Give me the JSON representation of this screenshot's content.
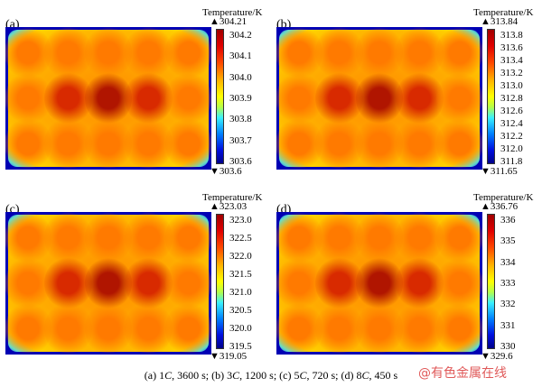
{
  "figure": {
    "panels": [
      {
        "id": "a",
        "label": "(a)",
        "colorbar": {
          "title": "Temperature/K",
          "max_label": "▲304.21",
          "min_label": "▼303.6",
          "ticks": [
            "304.2",
            "304.1",
            "304.0",
            "303.9",
            "303.8",
            "303.7",
            "303.6"
          ]
        }
      },
      {
        "id": "b",
        "label": "(b)",
        "colorbar": {
          "title": "Temperature/K",
          "max_label": "▲313.84",
          "min_label": "▼311.65",
          "ticks": [
            "313.8",
            "313.6",
            "313.4",
            "313.2",
            "313.0",
            "312.8",
            "312.6",
            "312.4",
            "312.2",
            "312.0",
            "311.8"
          ]
        }
      },
      {
        "id": "c",
        "label": "(c)",
        "colorbar": {
          "title": "Temperature/K",
          "max_label": "▲323.03",
          "min_label": "▼319.05",
          "ticks": [
            "323.0",
            "322.5",
            "322.0",
            "321.5",
            "321.0",
            "320.5",
            "320.0",
            "319.5"
          ]
        }
      },
      {
        "id": "d",
        "label": "(d)",
        "colorbar": {
          "title": "Temperature/K",
          "max_label": "▲336.76",
          "min_label": "▼329.6",
          "ticks": [
            "336",
            "335",
            "334",
            "333",
            "332",
            "331",
            "330"
          ]
        }
      }
    ],
    "caption": {
      "a_text": "(a) 1",
      "a_rate": "C",
      "a_time": ", 3600 s; (b) 3",
      "b_rate": "C",
      "b_time": ",   1200 s; (c) 5",
      "c_rate": "C",
      "c_time": ", 720 s; (d) 8",
      "d_rate": "C",
      "d_time": ", 450 s"
    },
    "watermark": "@有色金属在线"
  }
}
